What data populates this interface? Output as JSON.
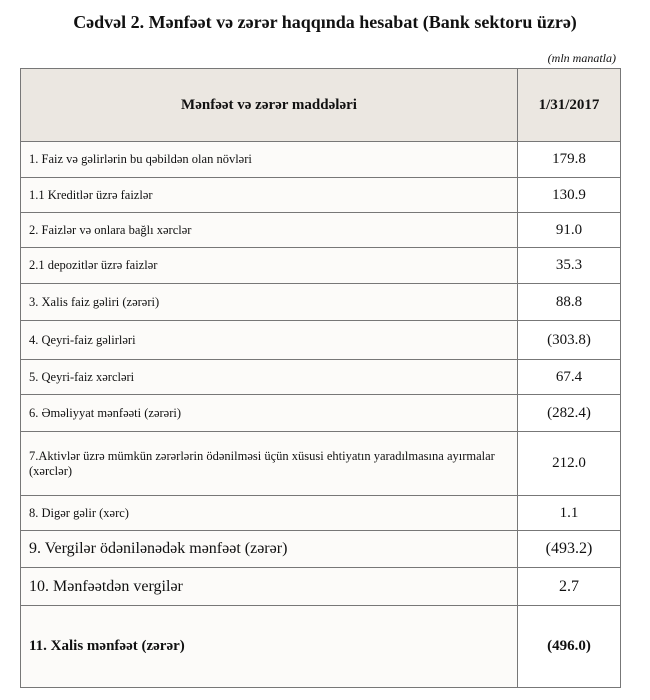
{
  "title": "Cədvəl 2. Mənfəət və zərər haqqında hesabat (Bank sektoru üzrə)",
  "unit": "(mln manatla)",
  "table": {
    "header": [
      "Mənfəət və zərər maddələri",
      "1/31/2017"
    ],
    "rows": [
      [
        "1. Faiz və gəlirlərin bu qəbildən olan növləri",
        "179.8"
      ],
      [
        "1.1 Kreditlər üzrə faizlər",
        "130.9"
      ],
      [
        "2. Faizlər və onlara bağlı xərclər",
        "91.0"
      ],
      [
        "2.1 depozitlər üzrə faizlər",
        "35.3"
      ],
      [
        "3. Xalis faiz gəliri (zərəri)",
        "88.8"
      ],
      [
        "4. Qeyri-faiz gəlirləri",
        "(303.8)"
      ],
      [
        "5. Qeyri-faiz xərcləri",
        "67.4"
      ],
      [
        "6. Əməliyyat mənfəəti (zərəri)",
        "(282.4)"
      ],
      [
        "7.Aktivlər üzrə mümkün zərərlərin ödənilməsi üçün xüsusi ehtiyatın yaradılmasına ayırmalar (xərclər)",
        "212.0"
      ],
      [
        "8. Digər gəlir (xərc)",
        "1.1"
      ],
      [
        "9. Vergilər ödənilənədək mənfəət (zərər)",
        "(493.2)"
      ],
      [
        "10. Mənfəətdən vergilər",
        "2.7"
      ],
      [
        "11. Xalis mənfəət (zərər)",
        "(496.0)"
      ]
    ]
  }
}
